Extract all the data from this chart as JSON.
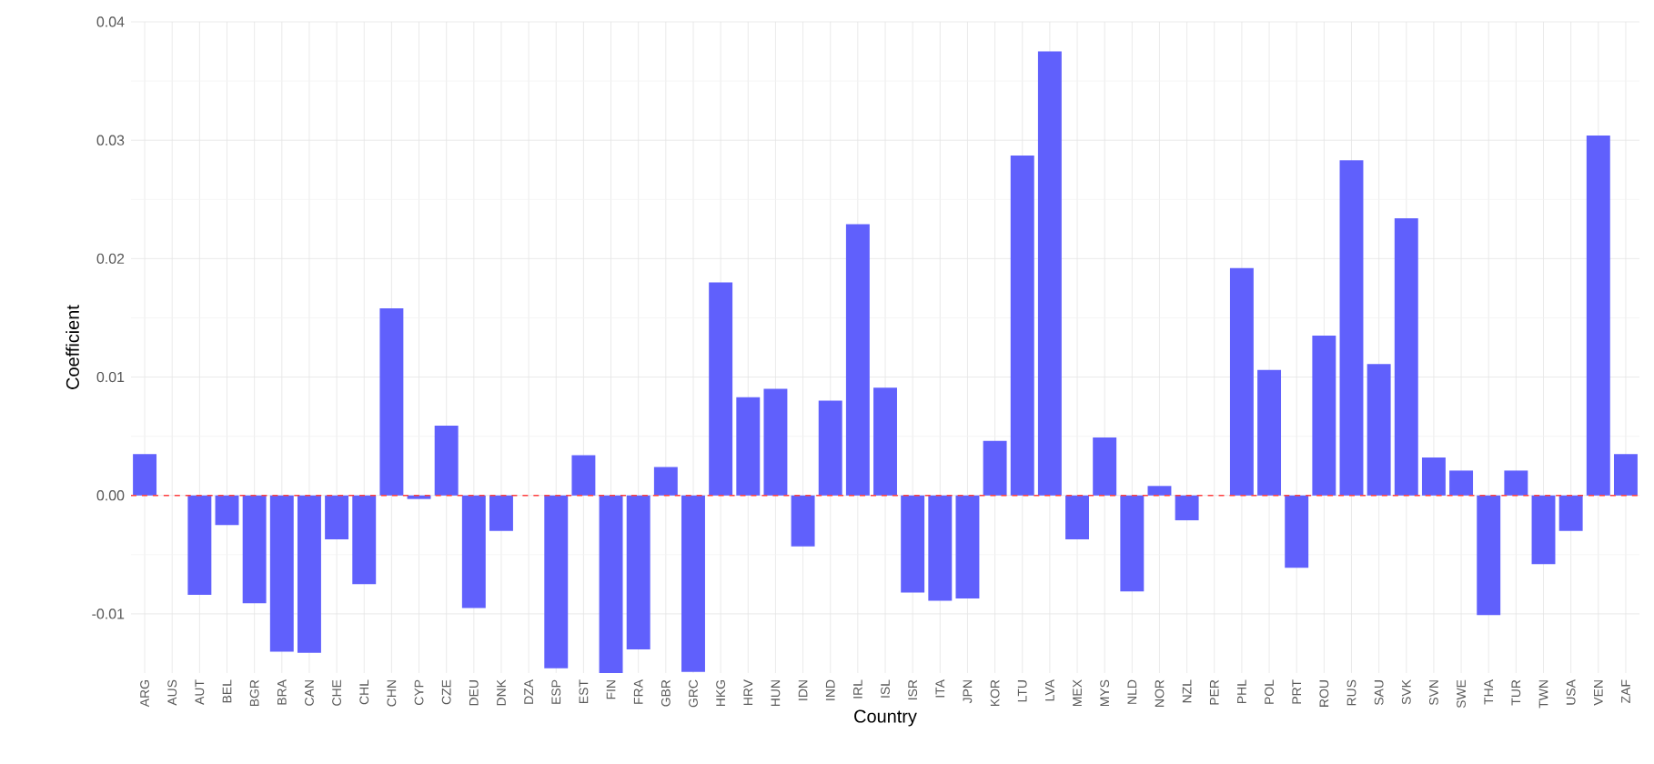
{
  "chart_data": {
    "type": "bar",
    "xlabel": "Country",
    "ylabel": "Coefficient",
    "categories": [
      "ARG",
      "AUS",
      "AUT",
      "BEL",
      "BGR",
      "BRA",
      "CAN",
      "CHE",
      "CHL",
      "CHN",
      "CYP",
      "CZE",
      "DEU",
      "DNK",
      "DZA",
      "ESP",
      "EST",
      "FIN",
      "FRA",
      "GBR",
      "GRC",
      "HKG",
      "HRV",
      "HUN",
      "IDN",
      "IND",
      "IRL",
      "ISL",
      "ISR",
      "ITA",
      "JPN",
      "KOR",
      "LTU",
      "LVA",
      "MEX",
      "MYS",
      "NLD",
      "NOR",
      "NZL",
      "PER",
      "PHL",
      "POL",
      "PRT",
      "ROU",
      "RUS",
      "SAU",
      "SVK",
      "SVN",
      "SWE",
      "THA",
      "TUR",
      "TWN",
      "USA",
      "VEN",
      "ZAF"
    ],
    "values": [
      0.0035,
      0,
      -0.0084,
      -0.0025,
      -0.0091,
      -0.0132,
      -0.0133,
      -0.0037,
      -0.0075,
      0.0158,
      -0.0003,
      0.0059,
      -0.0095,
      -0.003,
      0,
      -0.0146,
      0.0034,
      -0.015,
      -0.013,
      0.0024,
      -0.0149,
      0.018,
      0.0083,
      0.009,
      -0.0043,
      0.008,
      0.0229,
      0.0091,
      -0.0082,
      -0.0089,
      -0.0087,
      0.0046,
      0.0287,
      0.0375,
      -0.0037,
      0.0049,
      -0.0081,
      0.0008,
      -0.0021,
      0,
      0.0192,
      0.0106,
      -0.0061,
      0.0135,
      0.0283,
      0.0111,
      0.0234,
      0.0032,
      0.0021,
      -0.0101,
      0.0021,
      -0.0058,
      -0.003,
      0.0304,
      0.0035
    ],
    "color": "#6060fc",
    "ylim": [
      -0.015,
      0.04
    ],
    "yticks": [
      {
        "value": -0.01,
        "label": "-0.01"
      },
      {
        "value": 0,
        "label": "0.00"
      },
      0.01,
      0.02,
      0.03,
      0.04
    ],
    "grid": true,
    "ref_lines": [
      {
        "axis": "y",
        "value": 0,
        "color": "#ff4040",
        "line_style": "dashed"
      }
    ]
  }
}
